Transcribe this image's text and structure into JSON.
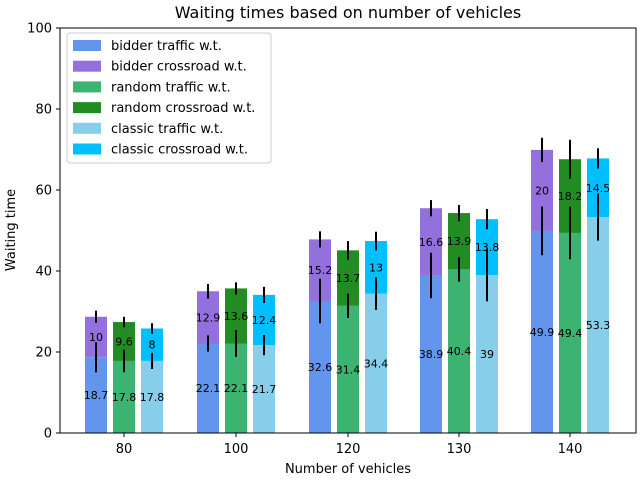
{
  "chart_data": {
    "type": "bar",
    "title": "Waiting times based on number of vehicles",
    "xlabel": "Number of vehicles",
    "ylabel": "Waiting time",
    "ylim": [
      0,
      100
    ],
    "yticks": [
      0,
      20,
      40,
      60,
      80,
      100
    ],
    "categories": [
      "80",
      "100",
      "120",
      "130",
      "140"
    ],
    "legend_position": "top-left",
    "groups": [
      {
        "name": "bidder",
        "traffic": {
          "name": "bidder traffic w.t.",
          "color": "#6495ed",
          "values": [
            18.7,
            22.1,
            32.6,
            38.9,
            49.9
          ]
        },
        "crossroad": {
          "name": "bidder crossroad w.t.",
          "color": "#9370db",
          "values": [
            10,
            12.9,
            15.2,
            16.6,
            20
          ]
        },
        "err_traffic": [
          3.7,
          2.0,
          5.5,
          5.6,
          6.0
        ],
        "err_total": [
          1.5,
          1.8,
          2.0,
          2.0,
          3.0
        ]
      },
      {
        "name": "random",
        "traffic": {
          "name": "random traffic w.t.",
          "color": "#3cb371",
          "values": [
            17.8,
            22.1,
            31.4,
            40.4,
            49.4
          ]
        },
        "crossroad": {
          "name": "random crossroad w.t.",
          "color": "#228b22",
          "values": [
            9.6,
            13.6,
            13.7,
            13.9,
            18.2
          ]
        },
        "err_traffic": [
          2.8,
          3.3,
          3.0,
          3.0,
          6.5
        ],
        "err_total": [
          1.3,
          1.5,
          2.3,
          2.0,
          4.8
        ]
      },
      {
        "name": "classic",
        "traffic": {
          "name": "classic traffic w.t.",
          "color": "#87ceeb",
          "values": [
            17.8,
            21.7,
            34.4,
            39,
            53.3
          ]
        },
        "crossroad": {
          "name": "classic crossroad w.t.",
          "color": "#00bfff",
          "values": [
            8,
            12.4,
            13,
            13.8,
            14.5
          ]
        },
        "err_traffic": [
          2.0,
          2.5,
          4.0,
          6.5,
          5.8
        ],
        "err_total": [
          1.3,
          2.0,
          2.3,
          2.5,
          2.5
        ]
      }
    ]
  }
}
